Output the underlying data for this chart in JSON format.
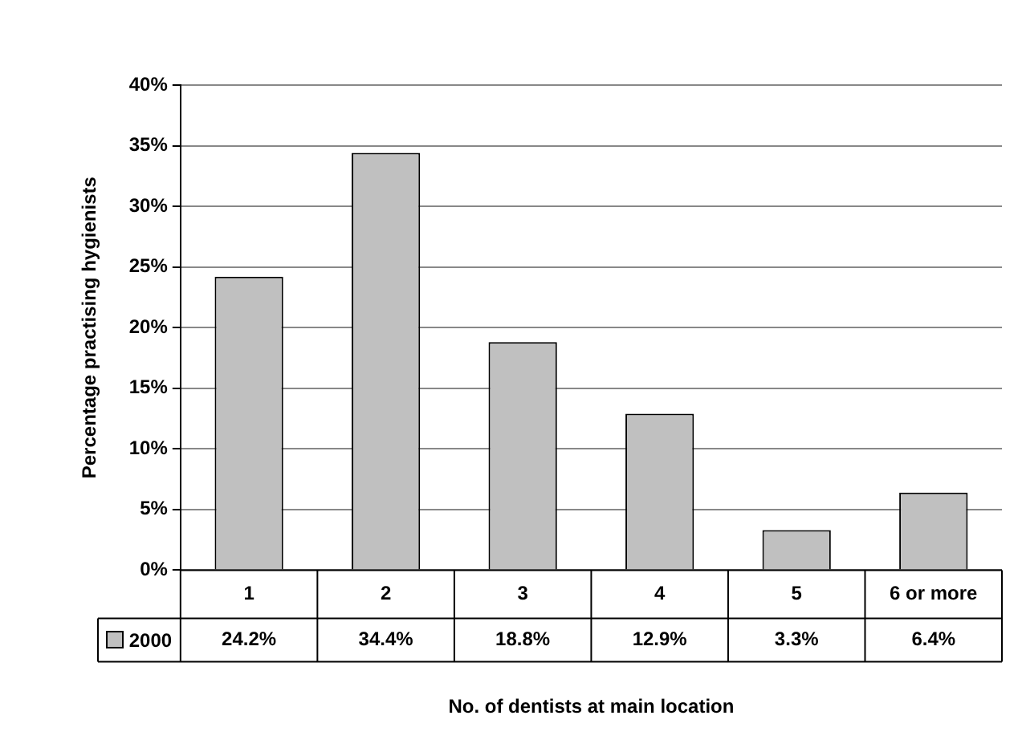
{
  "chart_data": {
    "type": "bar",
    "xlabel": "No. of dentists at main location",
    "ylabel": "Percentage practising hygienists",
    "categories": [
      "1",
      "2",
      "3",
      "4",
      "5",
      "6 or more"
    ],
    "series": [
      {
        "name": "2000",
        "color": "#c0c0c0",
        "values": [
          24.2,
          34.4,
          18.8,
          12.9,
          3.3,
          6.4
        ],
        "value_labels": [
          "24.2%",
          "34.4%",
          "18.8%",
          "12.9%",
          "3.3%",
          "6.4%"
        ]
      }
    ],
    "ylim": [
      0,
      40
    ],
    "yticks": [
      {
        "value": 0,
        "label": "0%"
      },
      {
        "value": 5,
        "label": "5%"
      },
      {
        "value": 10,
        "label": "10%"
      },
      {
        "value": 15,
        "label": "15%"
      },
      {
        "value": 20,
        "label": "20%"
      },
      {
        "value": 25,
        "label": "25%"
      },
      {
        "value": 30,
        "label": "30%"
      },
      {
        "value": 35,
        "label": "35%"
      },
      {
        "value": 40,
        "label": "40%"
      }
    ],
    "grid": "y",
    "legend": "bottom"
  }
}
